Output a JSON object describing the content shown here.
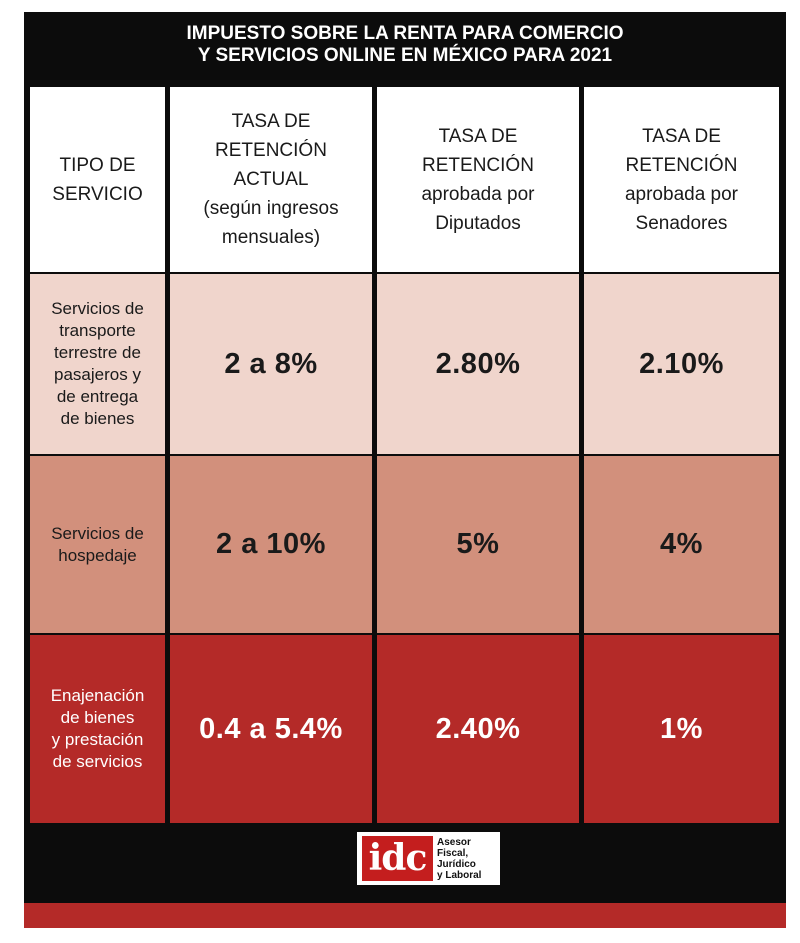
{
  "title": {
    "line1": "IMPUESTO SOBRE LA RENTA PARA COMERCIO",
    "line2": "Y SERVICIOS ONLINE EN MÉXICO PARA 2021"
  },
  "headers": [
    [
      "TIPO DE",
      "SERVICIO"
    ],
    [
      "TASA DE",
      "RETENCIÓN",
      "ACTUAL",
      "(según ingresos",
      "mensuales)"
    ],
    [
      "TASA DE",
      "RETENCIÓN",
      "aprobada por",
      "Diputados"
    ],
    [
      "TASA DE",
      "RETENCIÓN",
      "aprobada por",
      "Senadores"
    ]
  ],
  "rows": [
    {
      "service": [
        "Servicios de",
        "transporte",
        "terrestre de",
        "pasajeros y",
        "de entrega",
        "de bienes"
      ],
      "actual": "2 a 8%",
      "diputados": "2.80%",
      "senadores": "2.10%"
    },
    {
      "service": [
        "Servicios de",
        "hospedaje"
      ],
      "actual": "2 a 10%",
      "diputados": "5%",
      "senadores": "4%"
    },
    {
      "service": [
        "Enajenación",
        "de bienes",
        "y prestación",
        "de servicios"
      ],
      "actual": "0.4 a 5.4%",
      "diputados": "2.40%",
      "senadores": "1%"
    }
  ],
  "logo": {
    "mark": "idc",
    "lines": [
      "Asesor",
      "Fiscal,",
      "Jurídico",
      "y Laboral"
    ]
  },
  "colors": {
    "background": "#0c0c0c",
    "row1": "#f0d5cc",
    "row2": "#d2907c",
    "row3": "#b42a28",
    "logo_red": "#c41e1e"
  }
}
